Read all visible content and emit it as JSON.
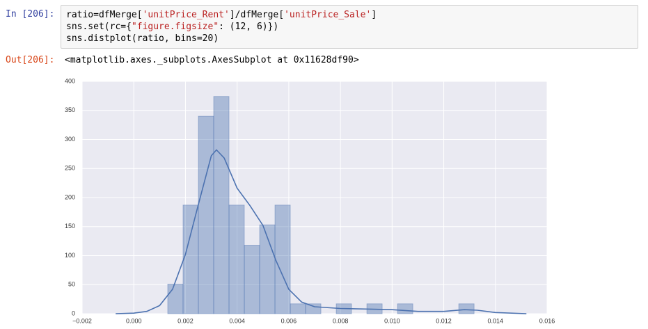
{
  "input_prompt": "In [206]:",
  "code_lines": [
    [
      {
        "t": "ratio=dfMerge["
      },
      {
        "t": "'unitPrice_Rent'",
        "str": true
      },
      {
        "t": "]/dfMerge["
      },
      {
        "t": "'unitPrice_Sale'",
        "str": true
      },
      {
        "t": "]"
      }
    ],
    [
      {
        "t": "sns.set(rc={"
      },
      {
        "t": "\"figure.figsize\"",
        "str": true
      },
      {
        "t": ": (12, 6)})"
      }
    ],
    [
      {
        "t": "sns.distplot(ratio, bins=20)"
      }
    ]
  ],
  "output_prompt": "Out[206]:",
  "output_text": "<matplotlib.axes._subplots.AxesSubplot at 0x11628df90>",
  "chart_data": {
    "type": "histogram",
    "bins": [
      0.001314,
      0.001907,
      0.0025,
      0.003093,
      0.003686,
      0.004279,
      0.004872,
      0.005465,
      0.006058,
      0.006651,
      0.007244,
      0.007837,
      0.00843,
      0.009023,
      0.009616,
      0.010209,
      0.010802,
      0.011395,
      0.011988,
      0.012581,
      0.013174
    ],
    "values": [
      51,
      187,
      340,
      374,
      187,
      118,
      153,
      187,
      17,
      17,
      0,
      17,
      0,
      17,
      0,
      17,
      0,
      0,
      0,
      17
    ],
    "color": "#4c72b0",
    "kde": {
      "x": [
        -0.0007,
        0,
        0.0005,
        0.001,
        0.0015,
        0.002,
        0.0025,
        0.003,
        0.0032,
        0.0035,
        0.004,
        0.0045,
        0.005,
        0.0055,
        0.006,
        0.0065,
        0.007,
        0.008,
        0.009,
        0.01,
        0.011,
        0.012,
        0.0128,
        0.0133,
        0.014,
        0.0152
      ],
      "values": [
        0,
        1,
        4,
        14,
        42,
        102,
        188,
        272,
        282,
        268,
        216,
        186,
        152,
        92,
        42,
        20,
        12,
        9,
        8,
        7,
        4,
        4,
        7,
        6,
        2,
        0
      ],
      "color": "#4c72b0"
    },
    "xlim": [
      -0.002,
      0.016
    ],
    "xticks": [
      {
        "value": -0.002,
        "label": "−0.002"
      },
      {
        "value": 0,
        "label": "0.000"
      },
      {
        "value": 0.002,
        "label": "0.002"
      },
      {
        "value": 0.004,
        "label": "0.004"
      },
      {
        "value": 0.006,
        "label": "0.006"
      },
      {
        "value": 0.008,
        "label": "0.008"
      },
      {
        "value": 0.01,
        "label": "0.010"
      },
      {
        "value": 0.012,
        "label": "0.012"
      },
      {
        "value": 0.014,
        "label": "0.014"
      },
      {
        "value": 0.016,
        "label": "0.016"
      }
    ],
    "ylim": [
      0,
      400
    ],
    "yticks": [
      0,
      50,
      100,
      150,
      200,
      250,
      300,
      350,
      400
    ],
    "grid": true
  }
}
